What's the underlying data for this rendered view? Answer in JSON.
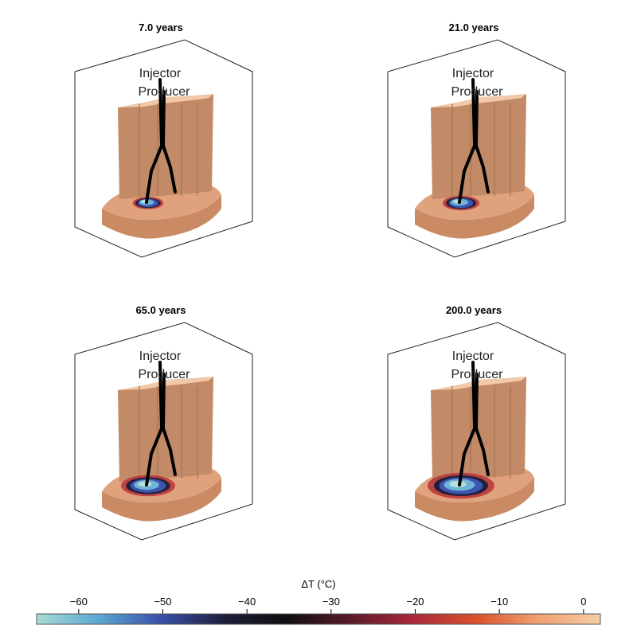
{
  "chart_data": [
    {
      "type": "other",
      "title": "7.0 years",
      "wells": [
        "Injector",
        "Producer"
      ],
      "plume_extent": 0.18
    },
    {
      "type": "other",
      "title": "21.0 years",
      "wells": [
        "Injector",
        "Producer"
      ],
      "plume_extent": 0.28
    },
    {
      "type": "other",
      "title": "65.0 years",
      "wells": [
        "Injector",
        "Producer"
      ],
      "plume_extent": 0.55
    },
    {
      "type": "other",
      "title": "200.0 years",
      "wells": [
        "Injector",
        "Producer"
      ],
      "plume_extent": 0.75
    }
  ],
  "colorbar": {
    "label": "ΔT (°C)",
    "range": [
      -65,
      2
    ],
    "ticks": [
      -60,
      -50,
      -40,
      -30,
      -20,
      -10,
      0
    ],
    "tick_labels": [
      "−60",
      "−50",
      "−40",
      "−30",
      "−20",
      "−10",
      "0"
    ],
    "colors": [
      "#a8ddd6",
      "#5aa6d2",
      "#3a4ea8",
      "#1e1f3a",
      "#0f0f0f",
      "#5a1a2a",
      "#a8283a",
      "#d8502a",
      "#f0a070",
      "#f6cca8"
    ]
  }
}
